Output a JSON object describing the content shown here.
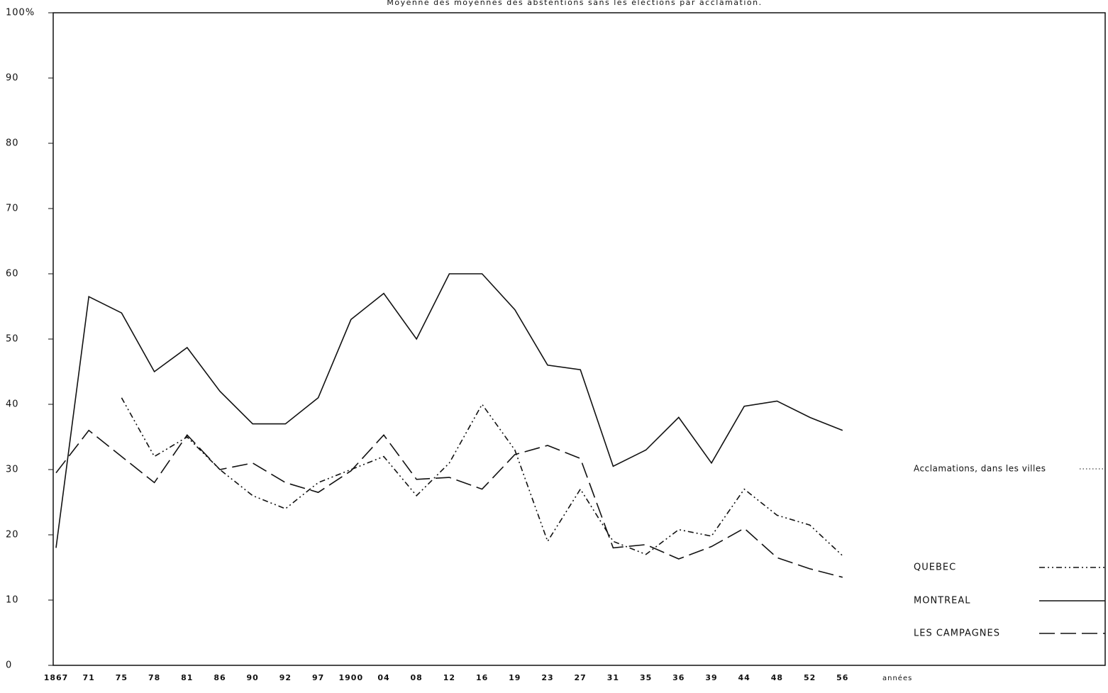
{
  "chart_data": {
    "type": "line",
    "title": "Moyenne des moyennes des abstentions sans les élections par acclamation.",
    "x_label": "années",
    "categories": [
      "1867",
      "71",
      "75",
      "78",
      "81",
      "86",
      "90",
      "92",
      "97",
      "1900",
      "04",
      "08",
      "12",
      "16",
      "19",
      "23",
      "27",
      "31",
      "35",
      "36",
      "39",
      "44",
      "48",
      "52",
      "56"
    ],
    "ylim": [
      0,
      100
    ],
    "yticks": [
      0,
      10,
      20,
      30,
      40,
      50,
      60,
      70,
      80,
      90,
      {
        "value": 100,
        "label": "100%"
      }
    ],
    "legend_position": "right",
    "annotation": "Acclamations, dans les villes",
    "series": [
      {
        "name": "QUEBEC",
        "color": "#111111",
        "dash": "dashdot",
        "values": [
          null,
          null,
          41,
          32,
          35,
          30,
          26,
          24,
          28,
          30,
          32,
          26,
          31,
          40,
          33,
          19,
          27,
          19,
          17,
          20.8,
          19.8,
          27,
          23,
          21.5,
          16.8
        ]
      },
      {
        "name": "MONTREAL",
        "color": "#111111",
        "dash": "solid",
        "values": [
          18,
          56.5,
          54,
          45,
          48.7,
          42,
          37,
          37,
          41,
          53,
          57,
          50,
          60,
          60,
          54.5,
          46,
          45.3,
          30.5,
          33,
          38,
          31,
          39.7,
          40.5,
          38,
          36
        ]
      },
      {
        "name": "LES CAMPAGNES",
        "color": "#111111",
        "dash": "dashed",
        "values": [
          29.5,
          36,
          32,
          28,
          35.3,
          30,
          31,
          28,
          26.5,
          29.8,
          35.3,
          28.5,
          28.8,
          27,
          32.3,
          33.7,
          31.7,
          18,
          18.5,
          16.3,
          18.2,
          21,
          16.5,
          14.8,
          13.5
        ]
      }
    ]
  }
}
